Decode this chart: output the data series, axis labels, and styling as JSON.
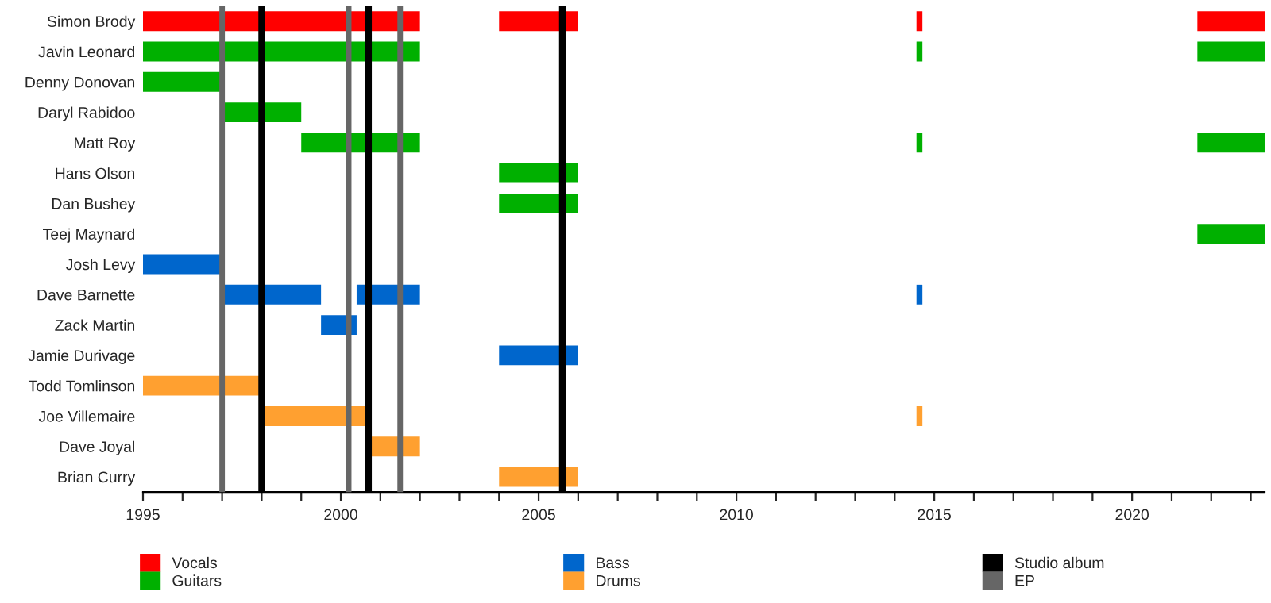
{
  "chart_data": {
    "type": "bar",
    "orientation": "horizontal",
    "categories": [
      "Simon Brody",
      "Javin Leonard",
      "Denny Donovan",
      "Daryl Rabidoo",
      "Matt Roy",
      "Hans Olson",
      "Dan Bushey",
      "Teej Maynard",
      "Josh Levy",
      "Dave Barnette",
      "Zack Martin",
      "Jamie Durivage",
      "Todd Tomlinson",
      "Joe Villemaire",
      "Dave Joyal",
      "Brian Curry"
    ],
    "series": [
      {
        "name": "Vocals",
        "color": "#ff0000",
        "base": [
          1995,
          null,
          null,
          null,
          null,
          null,
          null,
          null,
          null,
          null,
          null,
          null,
          null,
          null,
          null,
          null
        ],
        "values": [
          7,
          null,
          null,
          null,
          null,
          null,
          null,
          null,
          null,
          null,
          null,
          null,
          null,
          null,
          null,
          null
        ]
      },
      {
        "color": "#ff0000",
        "base": [
          2004,
          null,
          null,
          null,
          null,
          null,
          null,
          null,
          null,
          null,
          null,
          null,
          null,
          null,
          null,
          null
        ],
        "values": [
          2,
          null,
          null,
          null,
          null,
          null,
          null,
          null,
          null,
          null,
          null,
          null,
          null,
          null,
          null,
          null
        ]
      },
      {
        "color": "#ff0000",
        "base": [
          2014.55,
          null,
          null,
          null,
          null,
          null,
          null,
          null,
          null,
          null,
          null,
          null,
          null,
          null,
          null,
          null
        ],
        "values": [
          0.15,
          null,
          null,
          null,
          null,
          null,
          null,
          null,
          null,
          null,
          null,
          null,
          null,
          null,
          null,
          null
        ]
      },
      {
        "color": "#ff0000",
        "base": [
          2021.65,
          null,
          null,
          null,
          null,
          null,
          null,
          null,
          null,
          null,
          null,
          null,
          null,
          null,
          null,
          null
        ],
        "values": [
          1.7,
          null,
          null,
          null,
          null,
          null,
          null,
          null,
          null,
          null,
          null,
          null,
          null,
          null,
          null,
          null
        ]
      },
      {
        "name": "Guitars",
        "color": "#00b000",
        "base": [
          null,
          1995,
          1995,
          1997,
          1999,
          2004,
          2004,
          2021.65,
          null,
          null,
          null,
          null,
          null,
          null,
          null,
          null
        ],
        "values": [
          null,
          7,
          2,
          2,
          3,
          2,
          2,
          1.7,
          null,
          null,
          null,
          null,
          null,
          null,
          null,
          null
        ]
      },
      {
        "color": "#00b000",
        "base": [
          null,
          2014.55,
          null,
          null,
          2014.55,
          null,
          null,
          null,
          null,
          null,
          null,
          null,
          null,
          null,
          null,
          null
        ],
        "values": [
          null,
          0.15,
          null,
          null,
          0.15,
          null,
          null,
          null,
          null,
          null,
          null,
          null,
          null,
          null,
          null,
          null
        ]
      },
      {
        "color": "#00b000",
        "base": [
          null,
          2021.65,
          null,
          null,
          2021.65,
          null,
          null,
          null,
          null,
          null,
          null,
          null,
          null,
          null,
          null,
          null
        ],
        "values": [
          null,
          1.7,
          null,
          null,
          1.7,
          null,
          null,
          null,
          null,
          null,
          null,
          null,
          null,
          null,
          null,
          null
        ]
      },
      {
        "name": "Bass",
        "color": "#0066cc",
        "base": [
          null,
          null,
          null,
          null,
          null,
          null,
          null,
          null,
          1995,
          1997,
          1999.5,
          2004,
          null,
          null,
          null,
          null
        ],
        "values": [
          null,
          null,
          null,
          null,
          null,
          null,
          null,
          null,
          2,
          2.5,
          0.9,
          2,
          null,
          null,
          null,
          null
        ]
      },
      {
        "color": "#0066cc",
        "base": [
          null,
          null,
          null,
          null,
          null,
          null,
          null,
          null,
          null,
          2000.4,
          null,
          null,
          null,
          null,
          null,
          null
        ],
        "values": [
          null,
          null,
          null,
          null,
          null,
          null,
          null,
          null,
          null,
          1.6,
          null,
          null,
          null,
          null,
          null,
          null
        ]
      },
      {
        "color": "#0066cc",
        "base": [
          null,
          null,
          null,
          null,
          null,
          null,
          null,
          null,
          null,
          2014.55,
          null,
          null,
          null,
          null,
          null,
          null
        ],
        "values": [
          null,
          null,
          null,
          null,
          null,
          null,
          null,
          null,
          null,
          0.15,
          null,
          null,
          null,
          null,
          null,
          null
        ]
      },
      {
        "name": "Drums",
        "color": "#ffa030",
        "base": [
          null,
          null,
          null,
          null,
          null,
          null,
          null,
          null,
          null,
          null,
          null,
          null,
          1995,
          1998,
          2000.7,
          2004
        ],
        "values": [
          null,
          null,
          null,
          null,
          null,
          null,
          null,
          null,
          null,
          null,
          null,
          null,
          3,
          2.7,
          1.3,
          2
        ]
      },
      {
        "color": "#ffa030",
        "base": [
          null,
          null,
          null,
          null,
          null,
          null,
          null,
          null,
          null,
          null,
          null,
          null,
          null,
          2014.55,
          null,
          null
        ],
        "values": [
          null,
          null,
          null,
          null,
          null,
          null,
          null,
          null,
          null,
          null,
          null,
          null,
          null,
          0.15,
          null,
          null
        ]
      }
    ],
    "ref_lines": [
      {
        "axis": "x",
        "value": 1998,
        "label": "Studio album",
        "color": "#000000"
      },
      {
        "axis": "x",
        "value": 2000.7,
        "color": "#000000"
      },
      {
        "axis": "x",
        "value": 2005.6,
        "color": "#000000"
      },
      {
        "axis": "x",
        "value": 1997,
        "label": "EP",
        "color": "#666666"
      },
      {
        "axis": "x",
        "value": 2000.2,
        "color": "#666666"
      },
      {
        "axis": "x",
        "value": 2001.5,
        "color": "#666666"
      }
    ],
    "xlim": [
      1995,
      2023.35
    ],
    "xticks": [
      1995,
      {
        "value": 1996,
        "label": null
      },
      {
        "value": 1997,
        "label": null
      },
      {
        "value": 1998,
        "label": null
      },
      {
        "value": 1999,
        "label": null
      },
      2000,
      {
        "value": 2001,
        "label": null
      },
      {
        "value": 2002,
        "label": null
      },
      {
        "value": 2003,
        "label": null
      },
      {
        "value": 2004,
        "label": null
      },
      2005,
      {
        "value": 2006,
        "label": null
      },
      {
        "value": 2007,
        "label": null
      },
      {
        "value": 2008,
        "label": null
      },
      {
        "value": 2009,
        "label": null
      },
      2010,
      {
        "value": 2011,
        "label": null
      },
      {
        "value": 2012,
        "label": null
      },
      {
        "value": 2013,
        "label": null
      },
      {
        "value": 2014,
        "label": null
      },
      2015,
      {
        "value": 2016,
        "label": null
      },
      {
        "value": 2017,
        "label": null
      },
      {
        "value": 2018,
        "label": null
      },
      {
        "value": 2019,
        "label": null
      },
      2020,
      {
        "value": 2021,
        "label": null
      },
      {
        "value": 2022,
        "label": null
      },
      {
        "value": 2023,
        "label": null
      }
    ],
    "grid": false,
    "legend": "bottom"
  }
}
